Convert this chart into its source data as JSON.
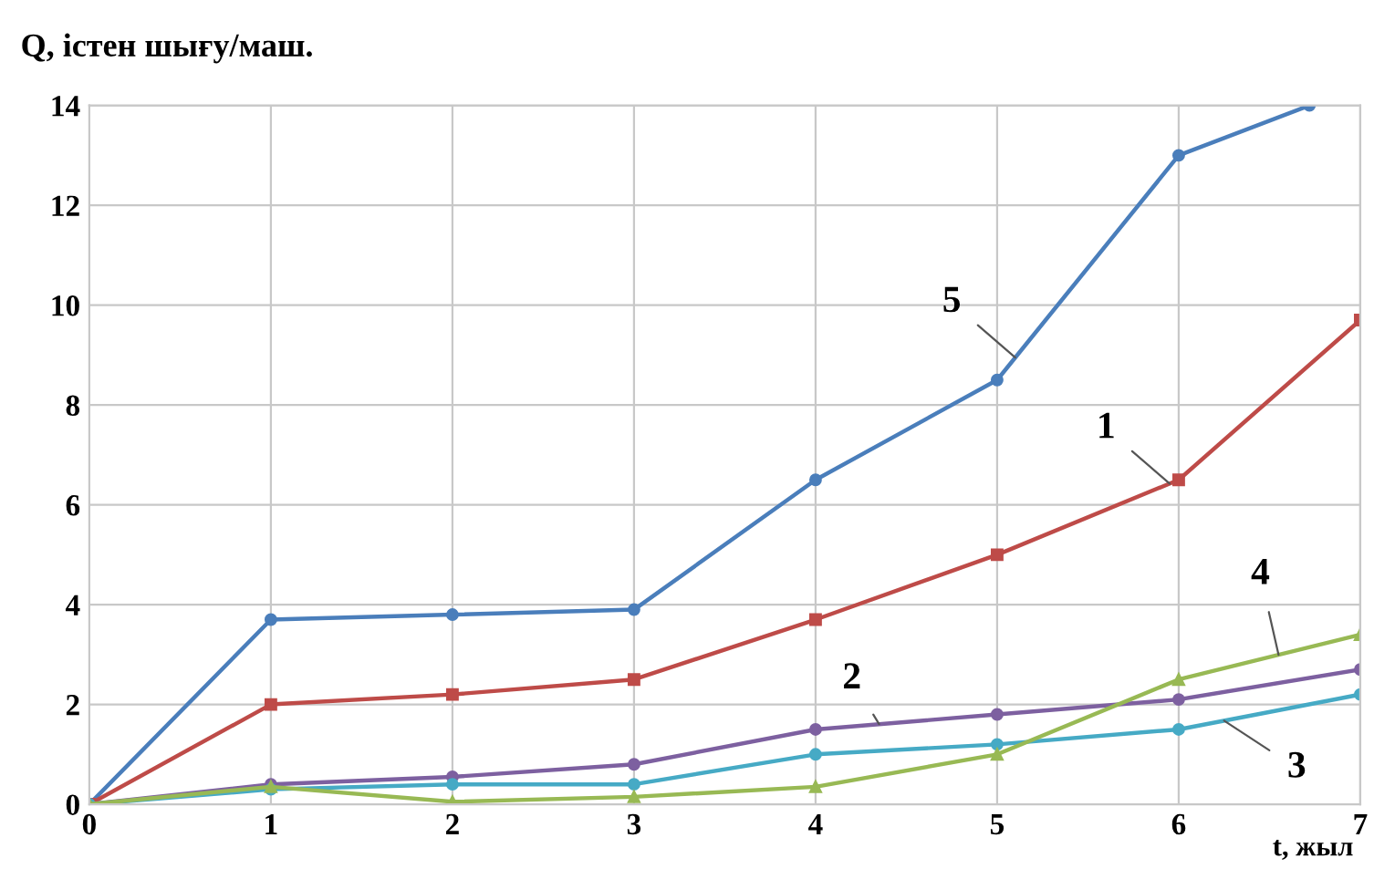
{
  "chart_data": {
    "type": "line",
    "ylabel": "Q, істен шығу/маш.",
    "xlabel": "t, жыл",
    "x": [
      0,
      1,
      2,
      3,
      4,
      5,
      6,
      7
    ],
    "series": [
      {
        "name": "5",
        "color": "#4a7ebb",
        "marker": "circle",
        "x": [
          0,
          1,
          2,
          3,
          4,
          5,
          6,
          6.72
        ],
        "values": [
          0,
          3.7,
          3.8,
          3.9,
          6.5,
          8.5,
          13,
          14
        ]
      },
      {
        "name": "1",
        "color": "#be4b48",
        "marker": "square",
        "values": [
          0,
          2,
          2.2,
          2.5,
          3.7,
          5,
          6.5,
          9.7
        ]
      },
      {
        "name": "2",
        "color": "#7d60a0",
        "marker": "circle",
        "values": [
          0,
          0.4,
          0.55,
          0.8,
          1.5,
          1.8,
          2.1,
          2.7
        ]
      },
      {
        "name": "3",
        "color": "#46aac5",
        "marker": "circle",
        "values": [
          0,
          0.3,
          0.4,
          0.4,
          1.0,
          1.2,
          1.5,
          2.2
        ]
      },
      {
        "name": "4",
        "color": "#98b954",
        "marker": "triangle",
        "values": [
          0,
          0.35,
          0.05,
          0.15,
          0.35,
          1.0,
          2.5,
          3.4
        ]
      }
    ],
    "xlim": [
      0,
      7
    ],
    "xticks": [
      0,
      1,
      2,
      3,
      4,
      5,
      6,
      7
    ],
    "ylim": [
      0,
      14
    ],
    "yticks": [
      0,
      2,
      4,
      6,
      8,
      10,
      12,
      14
    ],
    "grid": true,
    "legend": false,
    "line_style": "solid"
  }
}
